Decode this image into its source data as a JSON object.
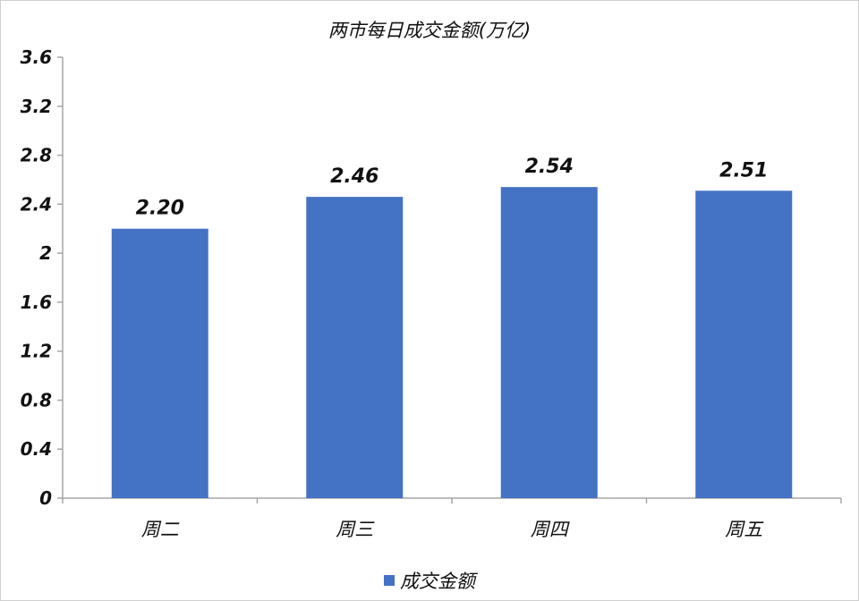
{
  "chart_data": {
    "type": "bar",
    "title": "两市每日成交金额(万亿)",
    "categories": [
      "周二",
      "周三",
      "周四",
      "周五"
    ],
    "series": [
      {
        "name": "成交金额",
        "values": [
          2.2,
          2.46,
          2.54,
          2.51
        ],
        "color": "#4472C4"
      }
    ],
    "data_labels": [
      "2.20",
      "2.46",
      "2.54",
      "2.51"
    ],
    "y_ticks": [
      "0",
      "0.4",
      "0.8",
      "1.2",
      "1.6",
      "2",
      "2.4",
      "2.8",
      "3.2",
      "3.6"
    ],
    "ylim": [
      0,
      3.6
    ],
    "grid": false,
    "legend_position": "bottom"
  }
}
